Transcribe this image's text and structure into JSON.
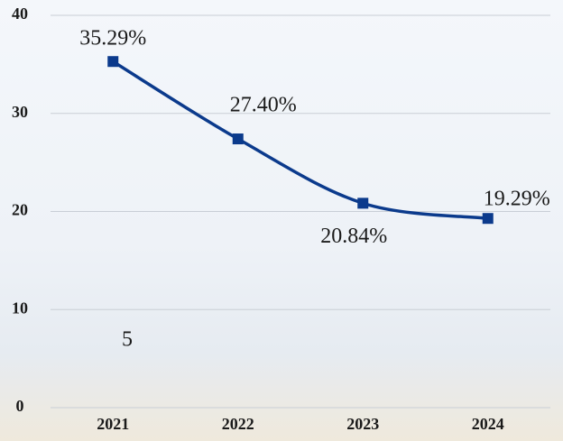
{
  "chart_data": {
    "type": "line",
    "categories": [
      "2021",
      "2022",
      "2023",
      "2024"
    ],
    "series": [
      {
        "name": null,
        "color": "#0b3a8c",
        "values": [
          35.29,
          27.4,
          20.84,
          19.29
        ],
        "value_labels": [
          "35.29%",
          "27.40%",
          "20.84%",
          "19.29%"
        ]
      }
    ],
    "annotations": [
      "5"
    ],
    "ylim": [
      0,
      40
    ],
    "yticks": [
      0,
      10,
      20,
      30,
      40
    ],
    "grid": true
  }
}
